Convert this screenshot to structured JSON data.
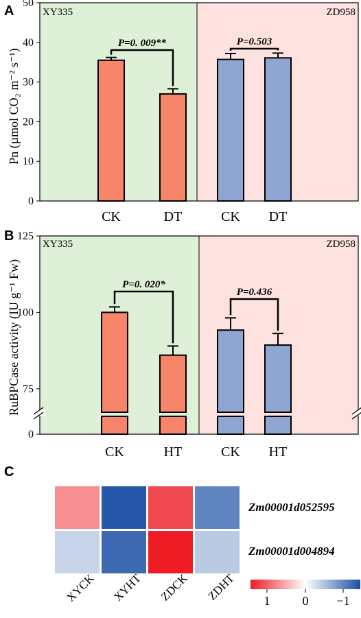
{
  "figure": {
    "panel_labels": [
      "A",
      "B",
      "C"
    ]
  },
  "colors": {
    "xy_bg": "#dff0d8",
    "zd_bg": "#fde2df",
    "xy_bar": "#f7856a",
    "zd_bar": "#8fa6d2",
    "cmap_pos": "#ee1c25",
    "cmap_mid": "#ffffff",
    "cmap_neg": "#1a4fa3"
  },
  "chart_data": [
    {
      "type": "bar",
      "panel": "A",
      "ylabel": "Pn (µmol CO₂ m⁻² s⁻¹)",
      "ylim": [
        0,
        50
      ],
      "yticks": [
        0,
        10,
        20,
        30,
        40,
        50
      ],
      "categories": [
        "CK",
        "DT",
        "CK",
        "DT"
      ],
      "groups": [
        "XY335",
        "ZD958"
      ],
      "values": [
        35.5,
        27.0,
        35.7,
        36.1
      ],
      "errors": [
        0.7,
        1.3,
        1.5,
        1.2
      ],
      "comparisons": [
        {
          "label": "P=0. 009**",
          "pair": [
            0,
            1
          ]
        },
        {
          "label": "P=0.503",
          "pair": [
            2,
            3
          ]
        }
      ]
    },
    {
      "type": "bar",
      "panel": "B",
      "ylabel": "RuBPCase activity (IU g⁻¹ Fw)",
      "ylim": [
        0,
        125
      ],
      "axis_break": true,
      "yticks": [
        0,
        75,
        100,
        125
      ],
      "categories": [
        "CK",
        "HT",
        "CK",
        "HT"
      ],
      "groups": [
        "XY335",
        "ZD958"
      ],
      "values": [
        100.0,
        86.0,
        94.2,
        89.3
      ],
      "errors": [
        1.8,
        3.0,
        4.0,
        3.8
      ],
      "comparisons": [
        {
          "label": "P=0. 020*",
          "pair": [
            0,
            1
          ]
        },
        {
          "label": "P=0.436",
          "pair": [
            2,
            3
          ]
        }
      ]
    },
    {
      "type": "heatmap",
      "panel": "C",
      "columns": [
        "XYCK",
        "XYHT",
        "ZDCK",
        "ZDHT"
      ],
      "rows": [
        "Zm00001d052595",
        "Zm00001d004894"
      ],
      "values": [
        [
          0.5,
          -0.95,
          0.8,
          -0.7
        ],
        [
          -0.25,
          -0.85,
          1.0,
          -0.3
        ]
      ],
      "colorbar_ticks": [
        "1",
        "0",
        "−1"
      ],
      "colorbar_range": [
        1,
        -1
      ]
    }
  ]
}
